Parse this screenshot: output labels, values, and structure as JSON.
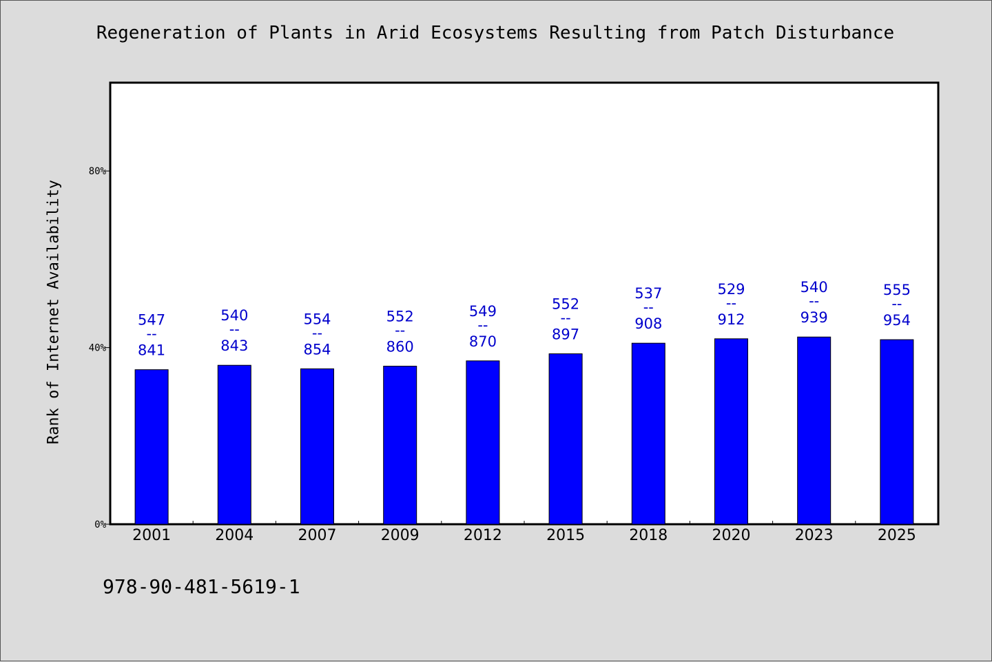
{
  "chart_data": {
    "type": "bar",
    "title": "Regeneration of Plants in Arid Ecosystems Resulting from Patch Disturbance",
    "xlabel": "",
    "ylabel": "Rank of Internet Availability",
    "categories": [
      "2001",
      "2004",
      "2007",
      "2009",
      "2012",
      "2015",
      "2018",
      "2020",
      "2023",
      "2025"
    ],
    "values": [
      35,
      36,
      35.2,
      35.8,
      37,
      38.6,
      41,
      42,
      42.4,
      41.8
    ],
    "data_labels_top": [
      "547",
      "540",
      "554",
      "552",
      "549",
      "552",
      "537",
      "529",
      "540",
      "555"
    ],
    "data_labels_bottom": [
      "841",
      "843",
      "854",
      "860",
      "870",
      "897",
      "908",
      "912",
      "939",
      "954"
    ],
    "label_separator": "--",
    "yticks": [
      0,
      40,
      80
    ],
    "ytick_labels": [
      "0%",
      "40%",
      "80%"
    ],
    "ylim": [
      0,
      100
    ],
    "grid": false,
    "bar_color": "#0000ff",
    "label_color": "#0000cc"
  },
  "footnote": "978-90-481-5619-1"
}
